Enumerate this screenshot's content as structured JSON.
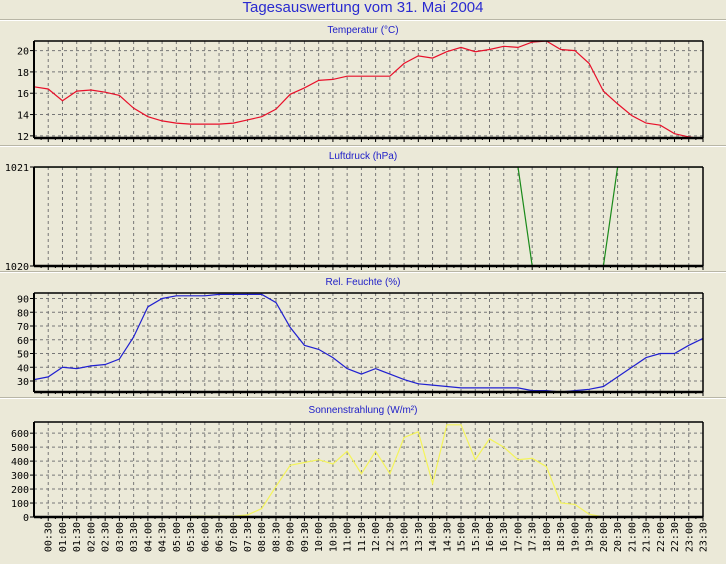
{
  "title": "Tagesauswertung vom 31. Mai 2004",
  "x_labels": [
    "00:30",
    "01:00",
    "01:30",
    "02:00",
    "02:30",
    "03:00",
    "03:30",
    "04:00",
    "04:30",
    "05:00",
    "05:30",
    "06:00",
    "06:30",
    "07:00",
    "07:30",
    "08:00",
    "08:30",
    "09:00",
    "09:30",
    "10:00",
    "10:30",
    "11:00",
    "11:30",
    "12:00",
    "12:30",
    "13:00",
    "13:30",
    "14:00",
    "14:30",
    "15:00",
    "15:30",
    "16:00",
    "16:30",
    "17:00",
    "17:30",
    "18:00",
    "18:30",
    "19:00",
    "19:30",
    "20:00",
    "20:30",
    "21:00",
    "21:30",
    "22:00",
    "22:30",
    "23:00",
    "23:30"
  ],
  "chart_data": [
    {
      "type": "line",
      "title": "Temperatur (°C)",
      "color": "#e8102a",
      "ylim": [
        11.8,
        20.9
      ],
      "yticks": [
        12,
        14,
        16,
        18,
        20
      ],
      "grid": "both",
      "x": [
        "00:00",
        "00:30",
        "01:00",
        "01:30",
        "02:00",
        "02:30",
        "03:00",
        "03:30",
        "04:00",
        "04:30",
        "05:00",
        "05:30",
        "06:00",
        "06:30",
        "07:00",
        "07:30",
        "08:00",
        "08:30",
        "09:00",
        "09:30",
        "10:00",
        "10:30",
        "11:00",
        "11:30",
        "12:00",
        "12:30",
        "13:00",
        "13:30",
        "14:00",
        "14:30",
        "15:00",
        "15:30",
        "16:00",
        "16:30",
        "17:00",
        "17:30",
        "18:00",
        "18:30",
        "19:00",
        "19:30",
        "20:00",
        "20:30",
        "21:00",
        "21:30",
        "22:00",
        "22:30",
        "23:00",
        "23:30"
      ],
      "values": [
        16.6,
        16.4,
        15.3,
        16.2,
        16.3,
        16.1,
        15.8,
        14.6,
        13.8,
        13.4,
        13.2,
        13.1,
        13.1,
        13.1,
        13.2,
        13.5,
        13.8,
        14.5,
        15.9,
        16.5,
        17.2,
        17.3,
        17.6,
        17.6,
        17.6,
        17.6,
        18.8,
        19.5,
        19.3,
        19.9,
        20.3,
        19.9,
        20.1,
        20.4,
        20.3,
        20.8,
        20.9,
        20.1,
        20.0,
        18.8,
        16.2,
        15.0,
        13.9,
        13.2,
        13.0,
        12.2,
        11.9,
        11.7
      ]
    },
    {
      "type": "line",
      "title": "Luftdruck (hPa)",
      "color": "#1a8a1a",
      "ylim": [
        1020,
        1021
      ],
      "yticks": [
        1020,
        1021
      ],
      "grid": "vertical",
      "values": [
        1021,
        1021,
        1021,
        1021,
        1021,
        1021,
        1021,
        1021,
        1021,
        1021,
        1021,
        1021,
        1021,
        1021,
        1021,
        1021,
        1021,
        1021,
        1021,
        1021,
        1021,
        1021,
        1021,
        1021,
        1021,
        1021,
        1021,
        1021,
        1021,
        1021,
        1021,
        1021,
        1021,
        1021,
        1021,
        1020,
        1020,
        1020,
        1020,
        1020,
        1020,
        1021,
        1021,
        1021,
        1021,
        1021,
        1021,
        1021
      ]
    },
    {
      "type": "line",
      "title": "Rel. Feuchte (%)",
      "color": "#2020d0",
      "ylim": [
        22,
        94
      ],
      "yticks": [
        30,
        40,
        50,
        60,
        70,
        80,
        90
      ],
      "grid": "both",
      "values": [
        31,
        33,
        40,
        39,
        41,
        42,
        46,
        62,
        84,
        90,
        92,
        92,
        92,
        93,
        93,
        93,
        93,
        87,
        69,
        56,
        53,
        47,
        39,
        35,
        39,
        35,
        31,
        28,
        27,
        26,
        25,
        25,
        25,
        25,
        25,
        23,
        23,
        22,
        23,
        24,
        26,
        33,
        40,
        47,
        50,
        50,
        56,
        61
      ]
    },
    {
      "type": "line",
      "title": "Sonnenstrahlung (W/m²)",
      "color": "#f4f45a",
      "ylim": [
        0,
        680
      ],
      "yticks": [
        0,
        100,
        200,
        300,
        400,
        500,
        600
      ],
      "grid": "both",
      "values": [
        0,
        0,
        0,
        0,
        0,
        0,
        0,
        0,
        0,
        0,
        0,
        5,
        5,
        5,
        5,
        15,
        60,
        220,
        370,
        390,
        410,
        380,
        470,
        310,
        470,
        310,
        570,
        610,
        240,
        660,
        660,
        410,
        560,
        500,
        410,
        420,
        360,
        100,
        90,
        20,
        0,
        0,
        0,
        0,
        0,
        0,
        0,
        0
      ]
    }
  ]
}
